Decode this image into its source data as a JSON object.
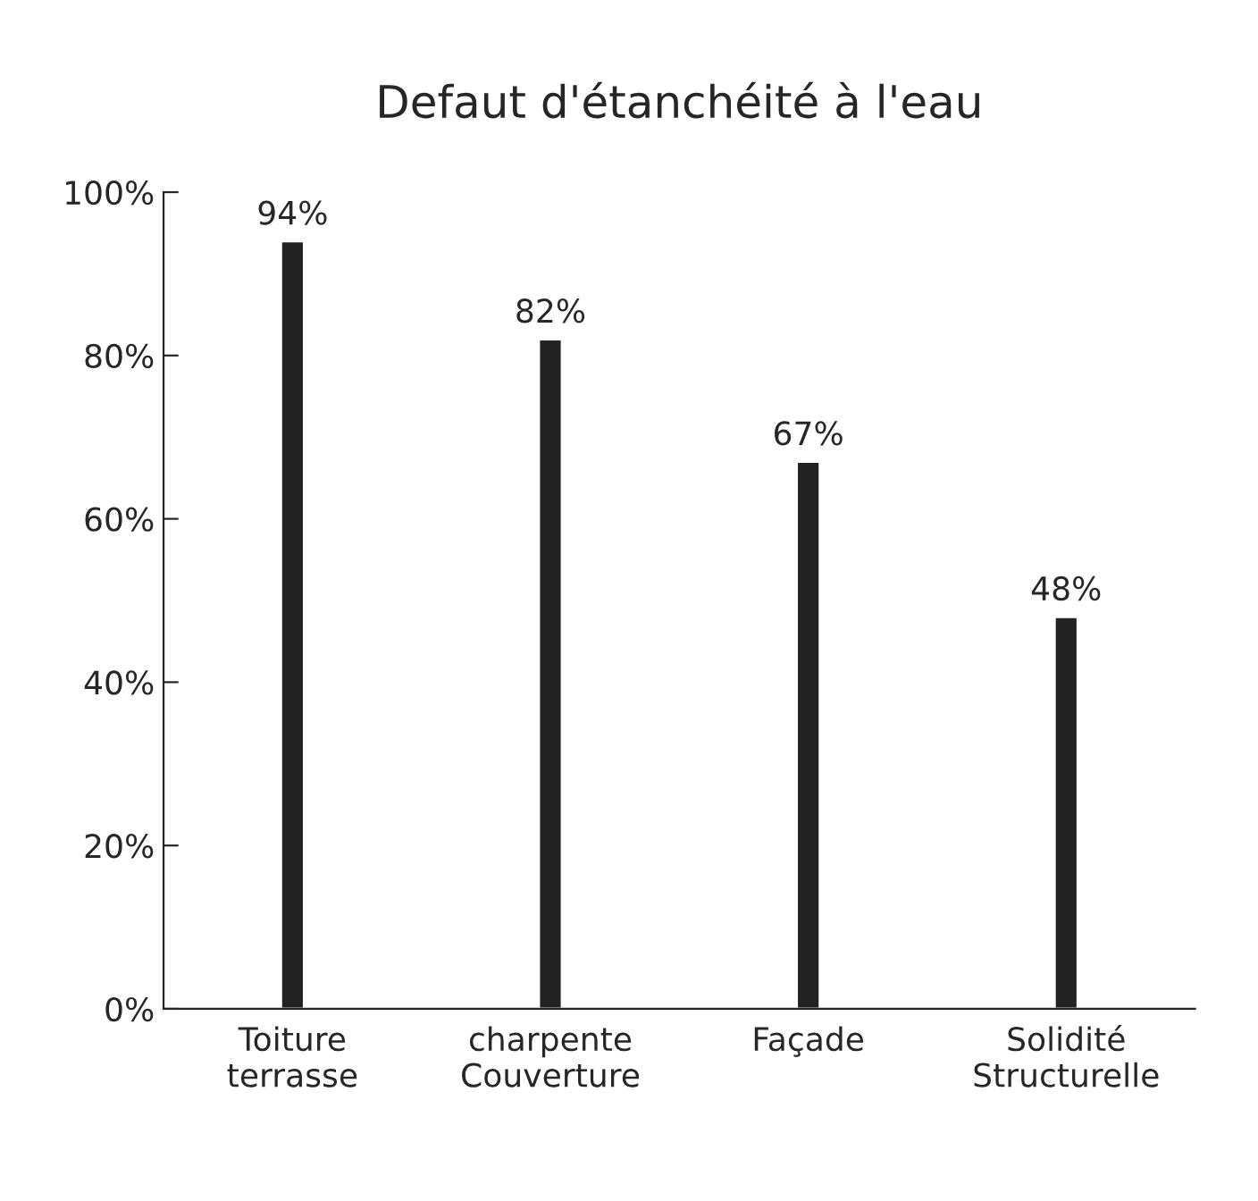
{
  "chart_data": {
    "type": "bar",
    "title": "Defaut d'étanchéité à l'eau",
    "categories": [
      "Toiture\nterrasse",
      "charpente\nCouverture",
      "Façade",
      "Solidité\nStructurelle"
    ],
    "values": [
      94,
      82,
      67,
      48
    ],
    "value_labels": [
      "94%",
      "82%",
      "67%",
      "48%"
    ],
    "color": "#222222",
    "ylim": [
      0,
      100
    ],
    "yticks": [
      {
        "value": 0,
        "label": "0%"
      },
      {
        "value": 20,
        "label": "20%"
      },
      {
        "value": 40,
        "label": "40%"
      },
      {
        "value": 60,
        "label": "60%"
      },
      {
        "value": 80,
        "label": "80%"
      },
      {
        "value": 100,
        "label": "100%"
      }
    ],
    "grid": false,
    "legend": false
  }
}
